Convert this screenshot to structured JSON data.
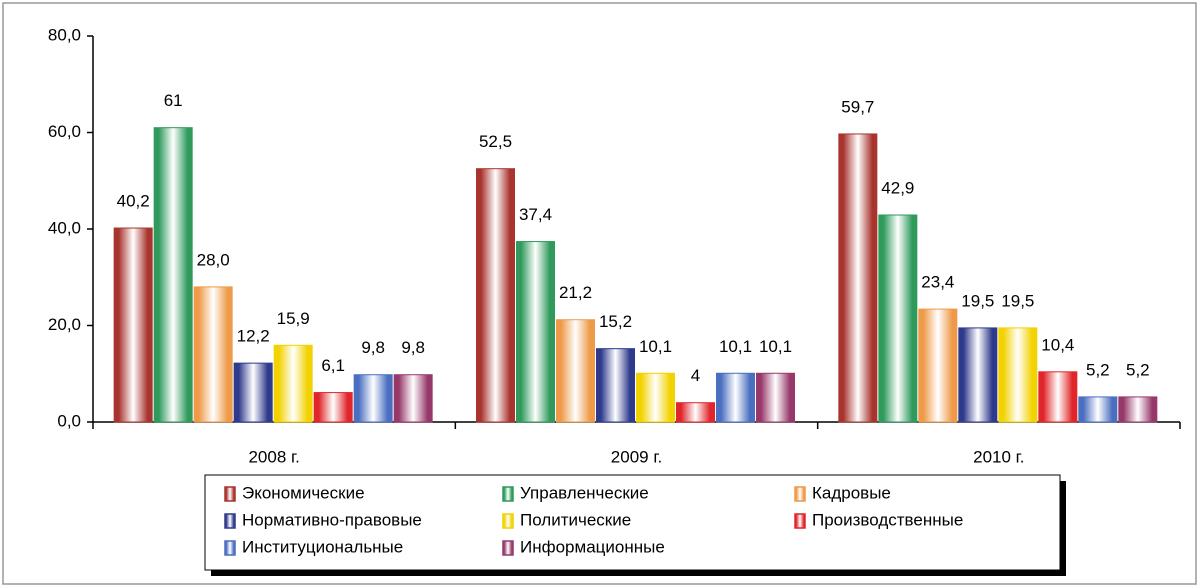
{
  "chart_data": {
    "type": "bar",
    "categories": [
      "2008 г.",
      "2009 г.",
      "2010 г."
    ],
    "series": [
      {
        "name": "Экономические",
        "color": "#a8342e",
        "values": [
          40.2,
          52.5,
          59.7
        ],
        "value_labels": [
          "40,2",
          "52,5",
          "59,7"
        ]
      },
      {
        "name": "Управленческие",
        "color": "#2f9a5c",
        "values": [
          61,
          37.4,
          42.9
        ],
        "value_labels": [
          "61",
          "37,4",
          "42,9"
        ]
      },
      {
        "name": "Кадровые",
        "color": "#ee9a48",
        "values": [
          28.0,
          21.2,
          23.4
        ],
        "value_labels": [
          "28,0",
          "21,2",
          "23,4"
        ]
      },
      {
        "name": "Нормативно-правовые",
        "color": "#2e3a8c",
        "values": [
          12.2,
          15.2,
          19.5
        ],
        "value_labels": [
          "12,2",
          "15,2",
          "19,5"
        ]
      },
      {
        "name": "Политические",
        "color": "#f2d200",
        "values": [
          15.9,
          10.1,
          19.5
        ],
        "value_labels": [
          "15,9",
          "10,1",
          "19,5"
        ]
      },
      {
        "name": "Производственные",
        "color": "#e0262a",
        "values": [
          6.1,
          4,
          10.4
        ],
        "value_labels": [
          "6,1",
          "4",
          "10,4"
        ]
      },
      {
        "name": "Институциональные",
        "color": "#4a6ec0",
        "values": [
          9.8,
          10.1,
          5.2
        ],
        "value_labels": [
          "9,8",
          "10,1",
          "5,2"
        ]
      },
      {
        "name": "Информационные",
        "color": "#97386a",
        "values": [
          9.8,
          10.1,
          5.2
        ],
        "value_labels": [
          "9,8",
          "10,1",
          "5,2"
        ]
      }
    ],
    "ylim": [
      0,
      80
    ],
    "yticks": [
      {
        "value": 0,
        "label": "0,0"
      },
      {
        "value": 20,
        "label": "20,0"
      },
      {
        "value": 40,
        "label": "40,0"
      },
      {
        "value": 60,
        "label": "60,0"
      },
      {
        "value": 80,
        "label": "80,0"
      }
    ]
  }
}
